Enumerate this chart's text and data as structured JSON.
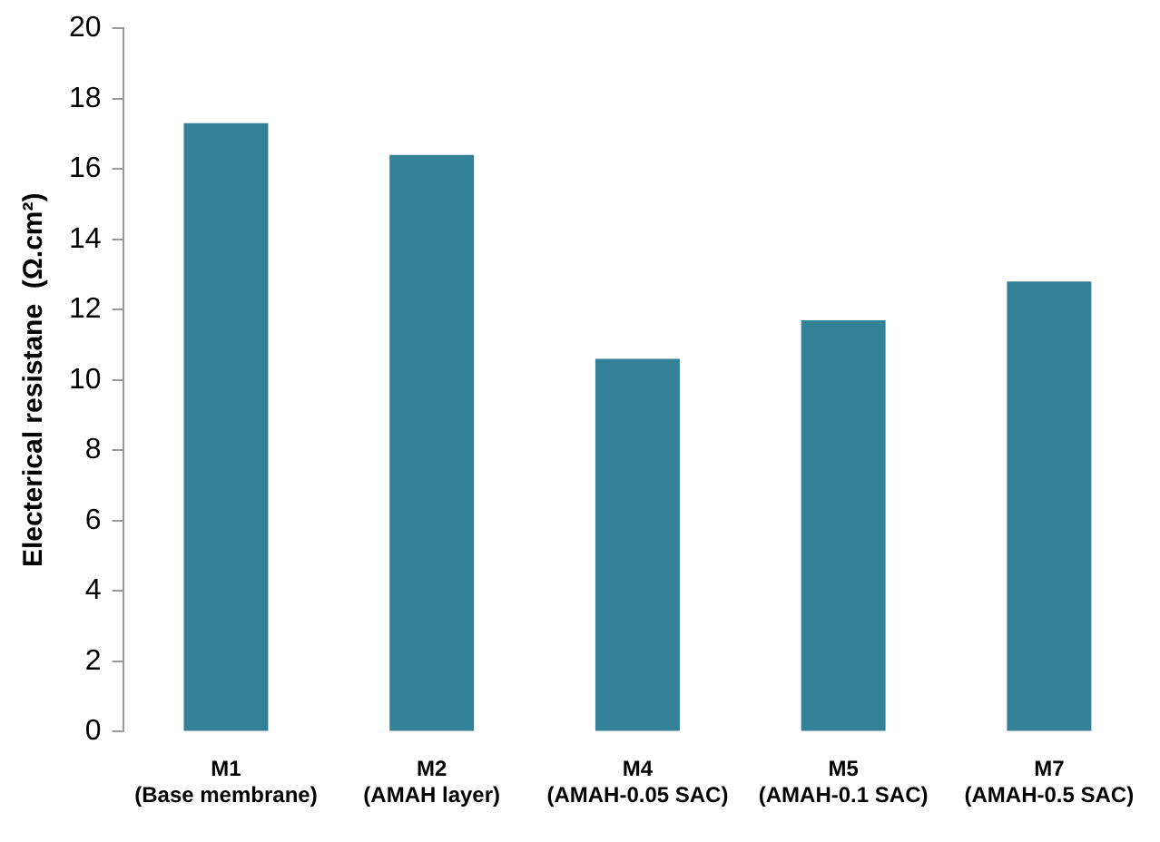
{
  "chart_data": {
    "type": "bar",
    "ylabel": "Electerical resistane  (Ω.cm²)",
    "categories": [
      "M1\n(Base membrane)",
      "M2\n(AMAH layer)",
      "M4\n(AMAH-0.05 SAC)",
      "M5\n(AMAH-0.1 SAC)",
      "M7\n(AMAH-0.5 SAC)"
    ],
    "values": [
      17.3,
      16.4,
      10.6,
      11.7,
      12.8
    ],
    "color": "#338199",
    "ylim": [
      0,
      20
    ],
    "yticks": [
      0,
      2,
      4,
      6,
      8,
      10,
      12,
      14,
      16,
      18,
      20
    ],
    "grid": false,
    "legend": false
  }
}
